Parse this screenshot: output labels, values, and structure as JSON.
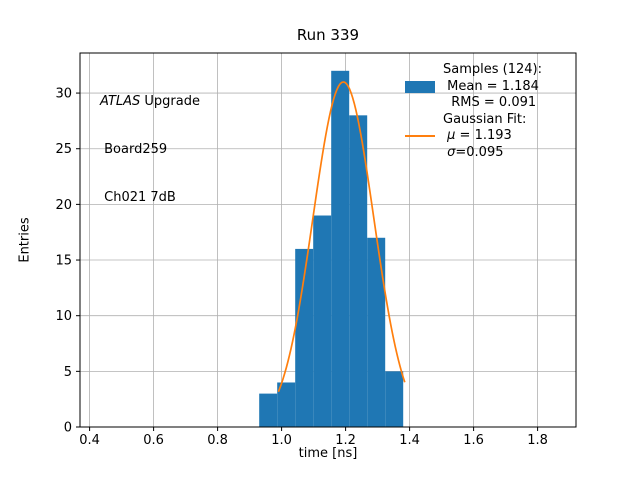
{
  "chart_data": {
    "type": "bar",
    "subtype": "histogram-with-gaussian-fit",
    "title": "Run 339",
    "xlabel": "time [ns]",
    "ylabel": "Entries",
    "xlim": [
      0.37,
      1.92
    ],
    "ylim": [
      0,
      33.6
    ],
    "xticks": [
      0.4,
      0.6,
      0.8,
      1.0,
      1.2,
      1.4,
      1.6,
      1.8
    ],
    "yticks": [
      0,
      5,
      10,
      15,
      20,
      25,
      30
    ],
    "grid": true,
    "grid_color": "#b0b0b0",
    "bar_color": "#1f77b4",
    "line_color": "#ff7f0e",
    "bins": {
      "start": 0.93,
      "width": 0.05625,
      "counts": [
        3,
        4,
        16,
        19,
        32,
        28,
        17,
        5
      ]
    },
    "gaussian": {
      "amplitude": 31.0,
      "mu": 1.193,
      "sigma": 0.095,
      "x_start": 0.99,
      "x_end": 1.385
    }
  },
  "annotation": {
    "atlas": "ATLAS",
    "upgrade": " Upgrade",
    "board": " Board259",
    "channel": " Ch021 7dB"
  },
  "legend": {
    "samples_header": "Samples (124):",
    "mean_label": " Mean = 1.184",
    "rms_label": "  RMS = 0.091",
    "fit_header": "Gaussian Fit:",
    "mu_symbol": " μ",
    "mu_value": " = 1.193",
    "sigma_symbol": " σ",
    "sigma_value": "=0.095"
  }
}
